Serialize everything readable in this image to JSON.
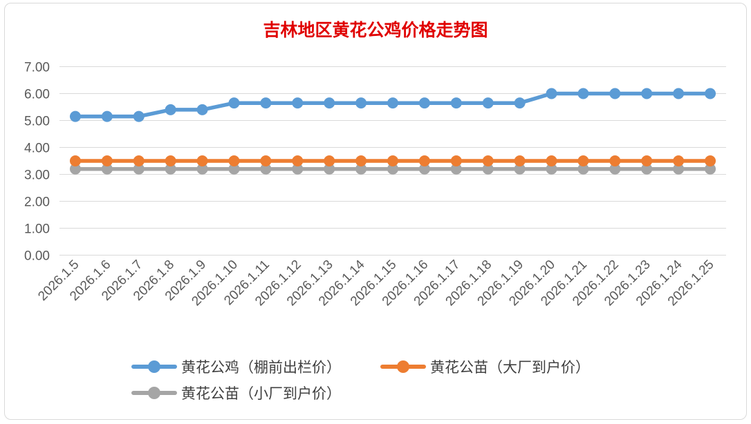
{
  "chart_data": {
    "type": "line",
    "title": "吉林地区黄花公鸡价格走势图",
    "categories": [
      "2026.1.5",
      "2026.1.6",
      "2026.1.7",
      "2026.1.8",
      "2026.1.9",
      "2026.1.10",
      "2026.1.11",
      "2026.1.12",
      "2026.1.13",
      "2026.1.14",
      "2026.1.15",
      "2026.1.16",
      "2026.1.17",
      "2026.1.18",
      "2026.1.19",
      "2026.1.20",
      "2026.1.21",
      "2026.1.22",
      "2026.1.23",
      "2026.1.24",
      "2026.1.25"
    ],
    "ylim": [
      0,
      7
    ],
    "yticks": [
      "0.00",
      "1.00",
      "2.00",
      "3.00",
      "4.00",
      "5.00",
      "6.00",
      "7.00"
    ],
    "grid": true,
    "legend_position": "bottom",
    "series": [
      {
        "name": "黄花公鸡（棚前出栏价）",
        "color": "#5b9bd5",
        "values": [
          5.15,
          5.15,
          5.15,
          5.4,
          5.4,
          5.65,
          5.65,
          5.65,
          5.65,
          5.65,
          5.65,
          5.65,
          5.65,
          5.65,
          5.65,
          6.0,
          6.0,
          6.0,
          6.0,
          6.0,
          6.0
        ]
      },
      {
        "name": "黄花公苗（大厂到户价）",
        "color": "#ed7d31",
        "values": [
          3.5,
          3.5,
          3.5,
          3.5,
          3.5,
          3.5,
          3.5,
          3.5,
          3.5,
          3.5,
          3.5,
          3.5,
          3.5,
          3.5,
          3.5,
          3.5,
          3.5,
          3.5,
          3.5,
          3.5,
          3.5
        ]
      },
      {
        "name": "黄花公苗（小厂到户价）",
        "color": "#a5a5a5",
        "values": [
          3.2,
          3.2,
          3.2,
          3.2,
          3.2,
          3.2,
          3.2,
          3.2,
          3.2,
          3.2,
          3.2,
          3.2,
          3.2,
          3.2,
          3.2,
          3.2,
          3.2,
          3.2,
          3.2,
          3.2,
          3.2
        ]
      }
    ]
  }
}
